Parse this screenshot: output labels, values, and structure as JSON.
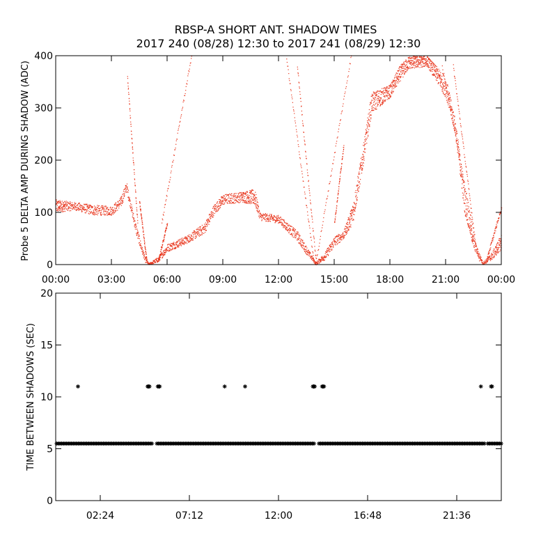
{
  "title_line1": "RBSP-A SHORT ANT. SHADOW TIMES",
  "title_line2": "2017 240 (08/28) 12:30 to 2017 241 (08/29) 12:30",
  "colors": {
    "top_points": "#e8351c",
    "bottom_points": "#000000",
    "axes": "#000000"
  },
  "chart_data": [
    {
      "type": "scatter",
      "xlabel": "",
      "ylabel": "Probe 5 DELTA AMP DURING SHADOW (ADC)",
      "xlim_hours": [
        0,
        24
      ],
      "ylim": [
        0,
        400
      ],
      "x_tick_labels": [
        "00:00",
        "03:00",
        "06:00",
        "09:00",
        "12:00",
        "15:00",
        "18:00",
        "21:00",
        "00:00"
      ],
      "x_ticks_hours": [
        0,
        3,
        6,
        9,
        12,
        15,
        18,
        21,
        24
      ],
      "y_tick_labels": [
        "0",
        "100",
        "200",
        "300",
        "400"
      ],
      "y_ticks": [
        0,
        100,
        200,
        300,
        400
      ],
      "grid": false,
      "color": "#e8351c",
      "envelope_hours": [
        [
          0.0,
          100,
          125
        ],
        [
          1.0,
          105,
          120
        ],
        [
          2.0,
          95,
          115
        ],
        [
          3.0,
          95,
          112
        ],
        [
          3.5,
          110,
          130
        ],
        [
          3.8,
          140,
          160
        ],
        [
          4.0,
          110,
          125
        ],
        [
          4.3,
          60,
          80
        ],
        [
          4.6,
          25,
          40
        ],
        [
          4.8,
          5,
          15
        ],
        [
          5.0,
          0,
          3
        ],
        [
          5.5,
          5,
          15
        ],
        [
          6.0,
          25,
          40
        ],
        [
          7.0,
          40,
          55
        ],
        [
          8.0,
          60,
          80
        ],
        [
          8.5,
          95,
          115
        ],
        [
          9.0,
          115,
          135
        ],
        [
          10.0,
          120,
          140
        ],
        [
          10.7,
          115,
          145
        ],
        [
          11.0,
          85,
          100
        ],
        [
          12.0,
          80,
          95
        ],
        [
          13.0,
          45,
          65
        ],
        [
          13.5,
          20,
          35
        ],
        [
          14.0,
          0,
          5
        ],
        [
          14.5,
          10,
          25
        ],
        [
          15.0,
          35,
          55
        ],
        [
          15.5,
          50,
          65
        ],
        [
          16.0,
          80,
          120
        ],
        [
          16.5,
          180,
          220
        ],
        [
          17.0,
          290,
          330
        ],
        [
          18.0,
          320,
          345
        ],
        [
          18.5,
          350,
          380
        ],
        [
          19.0,
          375,
          400
        ],
        [
          20.0,
          380,
          400
        ],
        [
          21.0,
          320,
          360
        ],
        [
          21.5,
          250,
          280
        ],
        [
          22.0,
          100,
          150
        ],
        [
          22.5,
          30,
          50
        ],
        [
          23.0,
          0,
          5
        ],
        [
          23.5,
          10,
          25
        ],
        [
          24.0,
          30,
          60
        ]
      ],
      "spikes_hours": [
        {
          "x0": 3.85,
          "y0": 360,
          "x1": 4.4,
          "y1": 80
        },
        {
          "x0": 4.5,
          "y0": 120,
          "x1": 4.9,
          "y1": 5
        },
        {
          "x0": 5.5,
          "y0": 5,
          "x1": 6.0,
          "y1": 80
        },
        {
          "x0": 5.7,
          "y0": 80,
          "x1": 7.3,
          "y1": 400
        },
        {
          "x0": 12.4,
          "y0": 400,
          "x1": 13.9,
          "y1": 5
        },
        {
          "x0": 13.0,
          "y0": 380,
          "x1": 14.0,
          "y1": 10
        },
        {
          "x0": 14.0,
          "y0": 5,
          "x1": 15.9,
          "y1": 400
        },
        {
          "x0": 15.0,
          "y0": 80,
          "x1": 15.5,
          "y1": 230
        },
        {
          "x0": 20.8,
          "y0": 380,
          "x1": 22.8,
          "y1": 5
        },
        {
          "x0": 21.4,
          "y0": 380,
          "x1": 22.6,
          "y1": 40
        },
        {
          "x0": 23.2,
          "y0": 10,
          "x1": 24.0,
          "y1": 110
        }
      ]
    },
    {
      "type": "scatter",
      "xlabel": "",
      "ylabel": "TIME BETWEEN SHADOWS (SEC)",
      "xlim_hours": [
        0,
        24
      ],
      "ylim": [
        0,
        20
      ],
      "x_tick_labels": [
        "02:24",
        "07:12",
        "12:00",
        "16:48",
        "21:36"
      ],
      "x_ticks_hours": [
        2.4,
        7.2,
        12.0,
        16.8,
        21.6
      ],
      "y_tick_labels": [
        "0",
        "5",
        "10",
        "15",
        "20"
      ],
      "y_ticks": [
        0,
        5,
        10,
        15,
        20
      ],
      "grid": false,
      "color": "#000000",
      "marker": "*",
      "baseline_value": 5.5,
      "baseline_hours": [
        0.0,
        24.0
      ],
      "baseline_gaps_hours": [
        [
          5.2,
          5.4
        ],
        [
          13.95,
          14.15
        ],
        [
          23.1,
          23.25
        ]
      ],
      "outlier_points": [
        {
          "x": 1.2,
          "y": 11
        },
        {
          "x": 4.95,
          "y": 11
        },
        {
          "x": 5.0,
          "y": 11
        },
        {
          "x": 5.05,
          "y": 11
        },
        {
          "x": 5.5,
          "y": 11
        },
        {
          "x": 5.55,
          "y": 11
        },
        {
          "x": 5.6,
          "y": 11
        },
        {
          "x": 9.1,
          "y": 11
        },
        {
          "x": 10.2,
          "y": 11
        },
        {
          "x": 13.85,
          "y": 11
        },
        {
          "x": 13.9,
          "y": 11
        },
        {
          "x": 13.95,
          "y": 11
        },
        {
          "x": 14.35,
          "y": 11
        },
        {
          "x": 14.4,
          "y": 11
        },
        {
          "x": 14.45,
          "y": 11
        },
        {
          "x": 22.9,
          "y": 11
        },
        {
          "x": 23.45,
          "y": 11
        },
        {
          "x": 23.5,
          "y": 11
        }
      ]
    }
  ]
}
